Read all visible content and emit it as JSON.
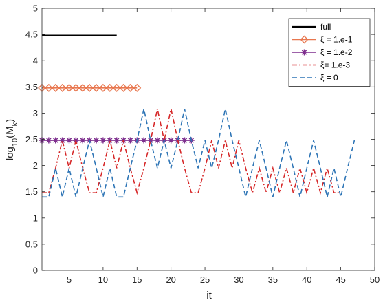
{
  "chart_data": {
    "type": "line",
    "xlabel": "it",
    "ylabel": {
      "main": "log",
      "sub1": "10",
      "mid": "(M",
      "sub2": "k",
      "end": ")"
    },
    "xlim": [
      1,
      50
    ],
    "ylim": [
      0,
      5
    ],
    "xticks": [
      5,
      10,
      15,
      20,
      25,
      30,
      35,
      40,
      45,
      50
    ],
    "yticks": [
      0,
      0.5,
      1,
      1.5,
      2,
      2.5,
      3,
      3.5,
      4,
      4.5,
      5
    ],
    "grid": false,
    "legend_position": "top-right",
    "series": [
      {
        "name": "full",
        "color": "#000000",
        "style": "solid",
        "marker": "none",
        "x": [
          1,
          12
        ],
        "y": [
          4.48,
          4.48
        ]
      },
      {
        "name": "ξ = 1.e-1",
        "color": "#e8774f",
        "style": "solid",
        "marker": "diamond",
        "x": [
          1,
          2,
          3,
          4,
          5,
          6,
          7,
          8,
          9,
          10,
          11,
          12,
          13,
          14,
          15
        ],
        "y": [
          3.48,
          3.48,
          3.48,
          3.48,
          3.48,
          3.48,
          3.48,
          3.48,
          3.48,
          3.48,
          3.48,
          3.48,
          3.48,
          3.48,
          3.48
        ]
      },
      {
        "name": "ξ = 1.e-2",
        "color": "#7e2f8e",
        "style": "solid",
        "marker": "asterisk",
        "x": [
          1,
          2,
          3,
          4,
          5,
          6,
          7,
          8,
          9,
          10,
          11,
          12,
          13,
          14,
          15,
          16,
          17,
          18,
          19,
          20,
          21,
          22,
          23
        ],
        "y": [
          2.48,
          2.48,
          2.48,
          2.48,
          2.48,
          2.48,
          2.48,
          2.48,
          2.48,
          2.48,
          2.48,
          2.48,
          2.48,
          2.48,
          2.48,
          2.48,
          2.48,
          2.48,
          2.48,
          2.48,
          2.48,
          2.48,
          2.48
        ]
      },
      {
        "name": "ξ= 1.e-3",
        "color": "#d62728",
        "style": "dashdot",
        "marker": "none",
        "x": [
          1,
          2,
          3,
          4,
          5,
          6,
          7,
          8,
          9,
          10,
          11,
          12,
          13,
          14,
          15,
          16,
          17,
          18,
          19,
          20,
          21,
          22,
          23,
          24,
          25,
          26,
          27,
          28,
          29,
          30,
          31,
          32,
          33,
          34,
          35,
          36,
          37,
          38,
          39,
          40,
          41,
          42,
          43,
          44,
          45
        ],
        "y": [
          1.48,
          1.48,
          1.95,
          2.48,
          1.95,
          2.48,
          1.95,
          1.48,
          1.48,
          1.95,
          2.48,
          1.95,
          2.48,
          1.95,
          1.48,
          1.95,
          2.48,
          3.08,
          2.48,
          3.08,
          2.48,
          1.95,
          1.48,
          1.48,
          1.95,
          2.48,
          1.95,
          2.48,
          1.95,
          2.48,
          1.95,
          1.48,
          1.95,
          1.48,
          1.95,
          1.48,
          1.95,
          1.48,
          1.95,
          1.48,
          1.95,
          1.48,
          1.95,
          1.48,
          1.48
        ]
      },
      {
        "name": "ξ = 0",
        "color": "#2e75b6",
        "style": "dashed",
        "marker": "none",
        "x": [
          1,
          2,
          3,
          4,
          5,
          6,
          7,
          8,
          9,
          10,
          11,
          12,
          13,
          14,
          15,
          16,
          17,
          18,
          19,
          20,
          21,
          22,
          23,
          24,
          25,
          26,
          27,
          28,
          29,
          30,
          31,
          32,
          33,
          34,
          35,
          36,
          37,
          38,
          39,
          40,
          41,
          42,
          43,
          44,
          45,
          46,
          47
        ],
        "y": [
          1.4,
          1.4,
          1.95,
          1.4,
          1.95,
          1.4,
          1.95,
          2.48,
          1.95,
          1.4,
          1.95,
          1.4,
          1.4,
          1.95,
          2.48,
          3.08,
          2.48,
          1.95,
          2.48,
          1.95,
          2.48,
          3.08,
          2.48,
          1.95,
          2.48,
          1.95,
          2.48,
          3.08,
          2.48,
          1.95,
          1.4,
          1.95,
          2.48,
          1.95,
          1.4,
          1.95,
          2.48,
          1.95,
          1.4,
          1.95,
          2.48,
          1.95,
          1.4,
          1.95,
          1.4,
          1.95,
          2.48
        ]
      }
    ]
  }
}
